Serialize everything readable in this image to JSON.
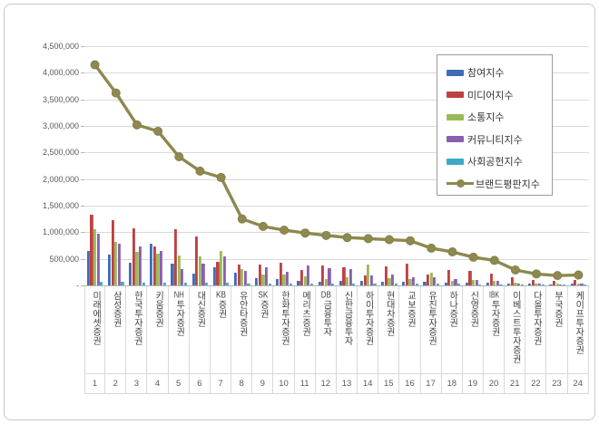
{
  "chart": {
    "y_axis": {
      "tick_labels": [
        "4,500,000",
        "4,000,000",
        "3,500,000",
        "3,000,000",
        "2,500,000",
        "2,000,000",
        "1,500,000",
        "1,000,000",
        "500,000",
        "-"
      ],
      "max": 4500000,
      "step": 500000
    },
    "legend": {
      "items": [
        {
          "key": "participation",
          "label": "참여지수",
          "color": "#3E6DB5",
          "type": "bar"
        },
        {
          "key": "media",
          "label": "미디어지수",
          "color": "#BE4141",
          "type": "bar"
        },
        {
          "key": "communication",
          "label": "소통지수",
          "color": "#9ABA59",
          "type": "bar"
        },
        {
          "key": "community",
          "label": "커뮤니티지수",
          "color": "#8A5FB0",
          "type": "bar"
        },
        {
          "key": "social",
          "label": "사회공헌지수",
          "color": "#3FA8C9",
          "type": "bar"
        },
        {
          "key": "brand",
          "label": "브랜드평판지수",
          "color": "#8D894F",
          "type": "line"
        }
      ]
    }
  },
  "chart_data": {
    "type": "bar+line",
    "title": "",
    "xlabel": "",
    "ylabel": "",
    "ylim": [
      0,
      4500000
    ],
    "grid": true,
    "legend_position": "upper-right-inside",
    "categories": [
      "미래에셋증권",
      "삼성증권",
      "한국투자증권",
      "키움증권",
      "NH투자증권",
      "대신증권",
      "KB증권",
      "유안타증권",
      "SK증권",
      "한화투자증권",
      "메리츠증권",
      "DB금융투자",
      "신한금융투자",
      "하이투자증권",
      "현대차증권",
      "교보증권",
      "유진투자증권",
      "하나증권",
      "신영증권",
      "IBK투자증권",
      "이베스트투자증권",
      "다올투자증권",
      "부국증권",
      "케이프투자증권"
    ],
    "ranks": [
      "1",
      "2",
      "3",
      "4",
      "5",
      "6",
      "7",
      "8",
      "9",
      "10",
      "11",
      "12",
      "13",
      "14",
      "15",
      "16",
      "17",
      "18",
      "19",
      "20",
      "21",
      "22",
      "23",
      "24"
    ],
    "series": [
      {
        "key": "participation",
        "name": "참여지수",
        "type": "bar",
        "color": "#3E6DB5",
        "values": [
          650000,
          580000,
          420000,
          780000,
          410000,
          230000,
          340000,
          240000,
          130000,
          120000,
          90000,
          70000,
          80000,
          90000,
          60000,
          70000,
          75000,
          55000,
          50000,
          45000,
          35000,
          30000,
          25000,
          30000
        ]
      },
      {
        "key": "media",
        "name": "미디어지수",
        "type": "bar",
        "color": "#BE4141",
        "values": [
          1330000,
          1230000,
          1070000,
          740000,
          1060000,
          920000,
          450000,
          400000,
          390000,
          430000,
          290000,
          370000,
          340000,
          190000,
          360000,
          410000,
          210000,
          285000,
          270000,
          230000,
          155000,
          110000,
          85000,
          95000
        ]
      },
      {
        "key": "communication",
        "name": "소통지수",
        "type": "bar",
        "color": "#9ABA59",
        "values": [
          1060000,
          810000,
          630000,
          600000,
          560000,
          540000,
          640000,
          300000,
          210000,
          210000,
          175000,
          120000,
          150000,
          395000,
          130000,
          120000,
          240000,
          90000,
          105000,
          90000,
          50000,
          38000,
          32000,
          35000
        ]
      },
      {
        "key": "community",
        "name": "커뮤니티지수",
        "type": "bar",
        "color": "#8A5FB0",
        "values": [
          970000,
          780000,
          740000,
          640000,
          310000,
          410000,
          540000,
          270000,
          340000,
          250000,
          380000,
          330000,
          310000,
          185000,
          210000,
          150000,
          155000,
          115000,
          100000,
          85000,
          35000,
          28000,
          25000,
          28000
        ]
      },
      {
        "key": "social",
        "name": "사회공헌지수",
        "type": "bar",
        "color": "#3FA8C9",
        "values": [
          65000,
          60000,
          55000,
          55000,
          50000,
          45000,
          45000,
          40000,
          35000,
          35000,
          35000,
          35000,
          35000,
          30000,
          30000,
          30000,
          30000,
          30000,
          25000,
          25000,
          15000,
          12000,
          10000,
          12000
        ]
      },
      {
        "key": "brand",
        "name": "브랜드평판지수",
        "type": "line",
        "color": "#8D894F",
        "values": [
          4150000,
          3620000,
          3020000,
          2900000,
          2420000,
          2150000,
          2030000,
          1250000,
          1110000,
          1040000,
          985000,
          940000,
          900000,
          880000,
          860000,
          840000,
          700000,
          630000,
          530000,
          470000,
          290000,
          215000,
          185000,
          195000
        ]
      }
    ]
  }
}
